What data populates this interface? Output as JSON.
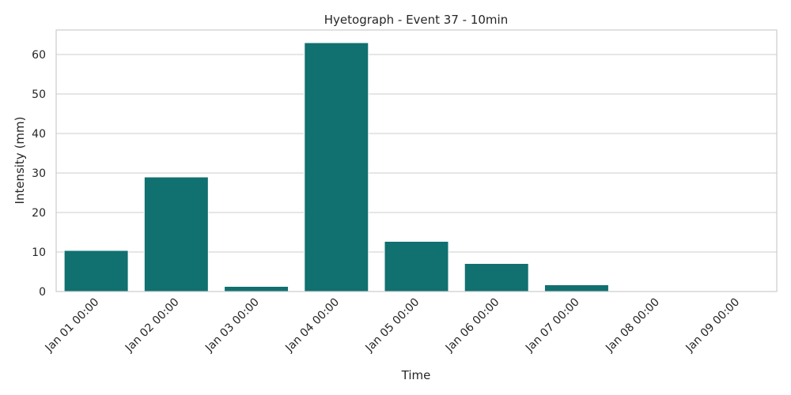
{
  "chart_data": {
    "type": "bar",
    "title": "Hyetograph - Event 37 - 10min",
    "xlabel": "Time",
    "ylabel": "Intensity (mm)",
    "categories": [
      "Jan 01 00:00",
      "Jan 02 00:00",
      "Jan 03 00:00",
      "Jan 04 00:00",
      "Jan 05 00:00",
      "Jan 06 00:00",
      "Jan 07 00:00",
      "Jan 08 00:00",
      "Jan 09 00:00"
    ],
    "values": [
      10.4,
      29.0,
      1.3,
      63.0,
      12.7,
      7.1,
      1.7,
      0,
      0
    ],
    "ylim": [
      0,
      66.2
    ],
    "yticks": [
      0,
      10,
      20,
      30,
      40,
      50,
      60
    ],
    "ytick_labels": [
      "0",
      "10",
      "20",
      "30",
      "40",
      "50",
      "60"
    ],
    "grid": "y",
    "bar_color": "#117070",
    "legend": "none"
  }
}
